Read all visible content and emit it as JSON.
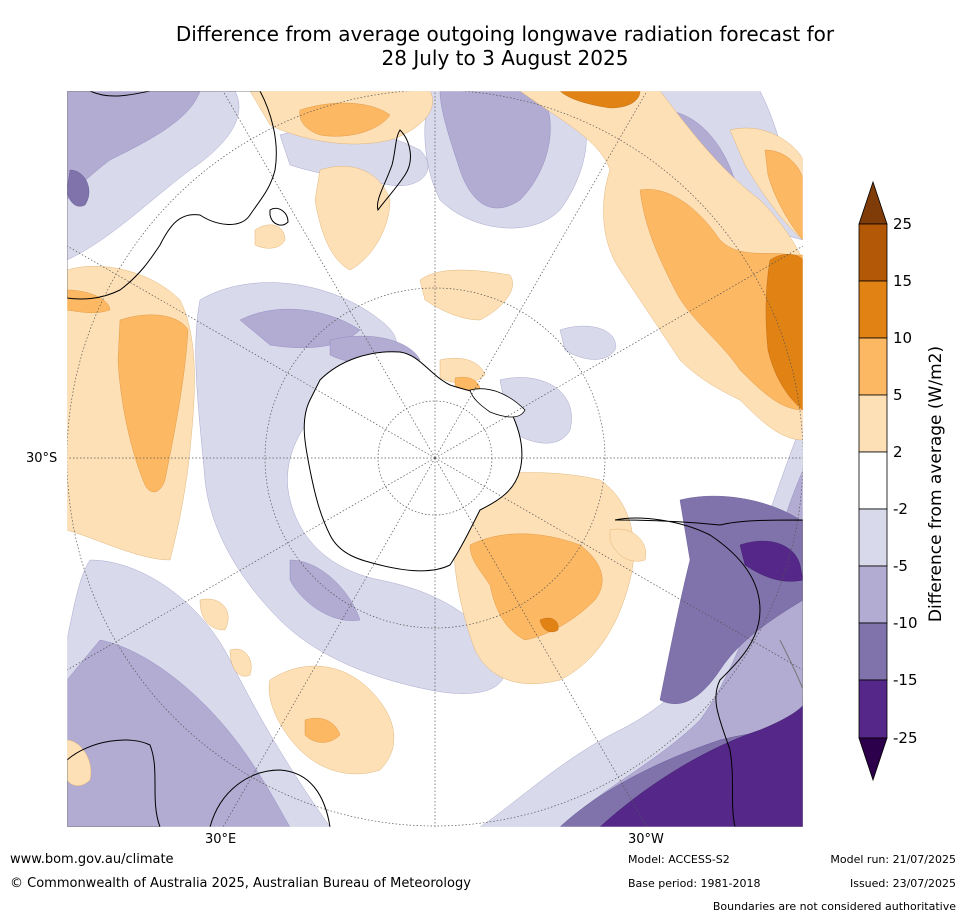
{
  "title_line1": "Difference from average outgoing longwave radiation forecast for",
  "title_line2": "28 July to 3 August 2025",
  "axis_labels": {
    "lat": "30°S",
    "lon_left": "30°E",
    "lon_right": "30°W"
  },
  "colorbar": {
    "label": "Difference from average (W/m2)",
    "ticks": [
      "25",
      "15",
      "10",
      "5",
      "2",
      "-2",
      "-5",
      "-10",
      "-15",
      "-25"
    ],
    "colors": {
      "gt25": "#7f3b08",
      "15_25": "#b35806",
      "10_15": "#e08214",
      "5_10": "#fdb863",
      "2_5": "#fee0b6",
      "m2_2": "#ffffff",
      "m5_m2": "#d8daeb",
      "m10_m5": "#b2abd2",
      "m15_m10": "#8073ac",
      "m25_m15": "#542788",
      "lt_m25": "#2d004b"
    }
  },
  "footer": {
    "website": "www.bom.gov.au/climate",
    "copyright": "© Commonwealth of Australia 2025, Australian Bureau of Meteorology",
    "model": "Model: ACCESS-S2",
    "base_period": "Base period: 1981-2018",
    "model_run": "Model run: 21/07/2025",
    "issued": "Issued: 23/07/2025",
    "disclaimer": "Boundaries are not considered authoritative"
  }
}
